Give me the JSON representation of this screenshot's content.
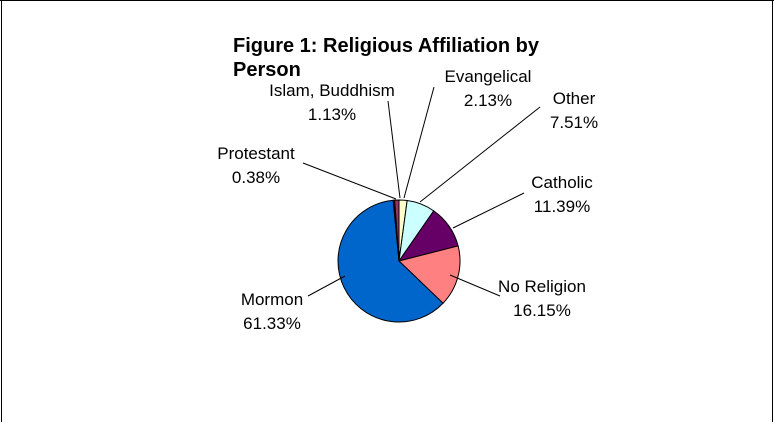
{
  "chart_data": {
    "type": "pie",
    "title_lines": [
      "Figure 1:  Religious Affiliation by",
      "Person"
    ],
    "slices": [
      {
        "label": "Evangelical",
        "value": 2.13,
        "value_text": "2.13%",
        "color": "#FFFFCC"
      },
      {
        "label": "Other",
        "value": 7.51,
        "value_text": "7.51%",
        "color": "#CCFFFF"
      },
      {
        "label": "Catholic",
        "value": 11.39,
        "value_text": "11.39%",
        "color": "#660066"
      },
      {
        "label": "No Religion",
        "value": 16.15,
        "value_text": "16.15%",
        "color": "#FF8080"
      },
      {
        "label": "Mormon",
        "value": 61.33,
        "value_text": "61.33%",
        "color": "#0066CC"
      },
      {
        "label": "Protestant",
        "value": 0.38,
        "value_text": "0.38%",
        "color": "#800000"
      },
      {
        "label": "Islam, Buddhism",
        "value": 1.13,
        "value_text": "1.13%",
        "color": "#993366"
      }
    ],
    "start_angle_deg": 0,
    "direction": "clockwise",
    "legend": "none"
  }
}
